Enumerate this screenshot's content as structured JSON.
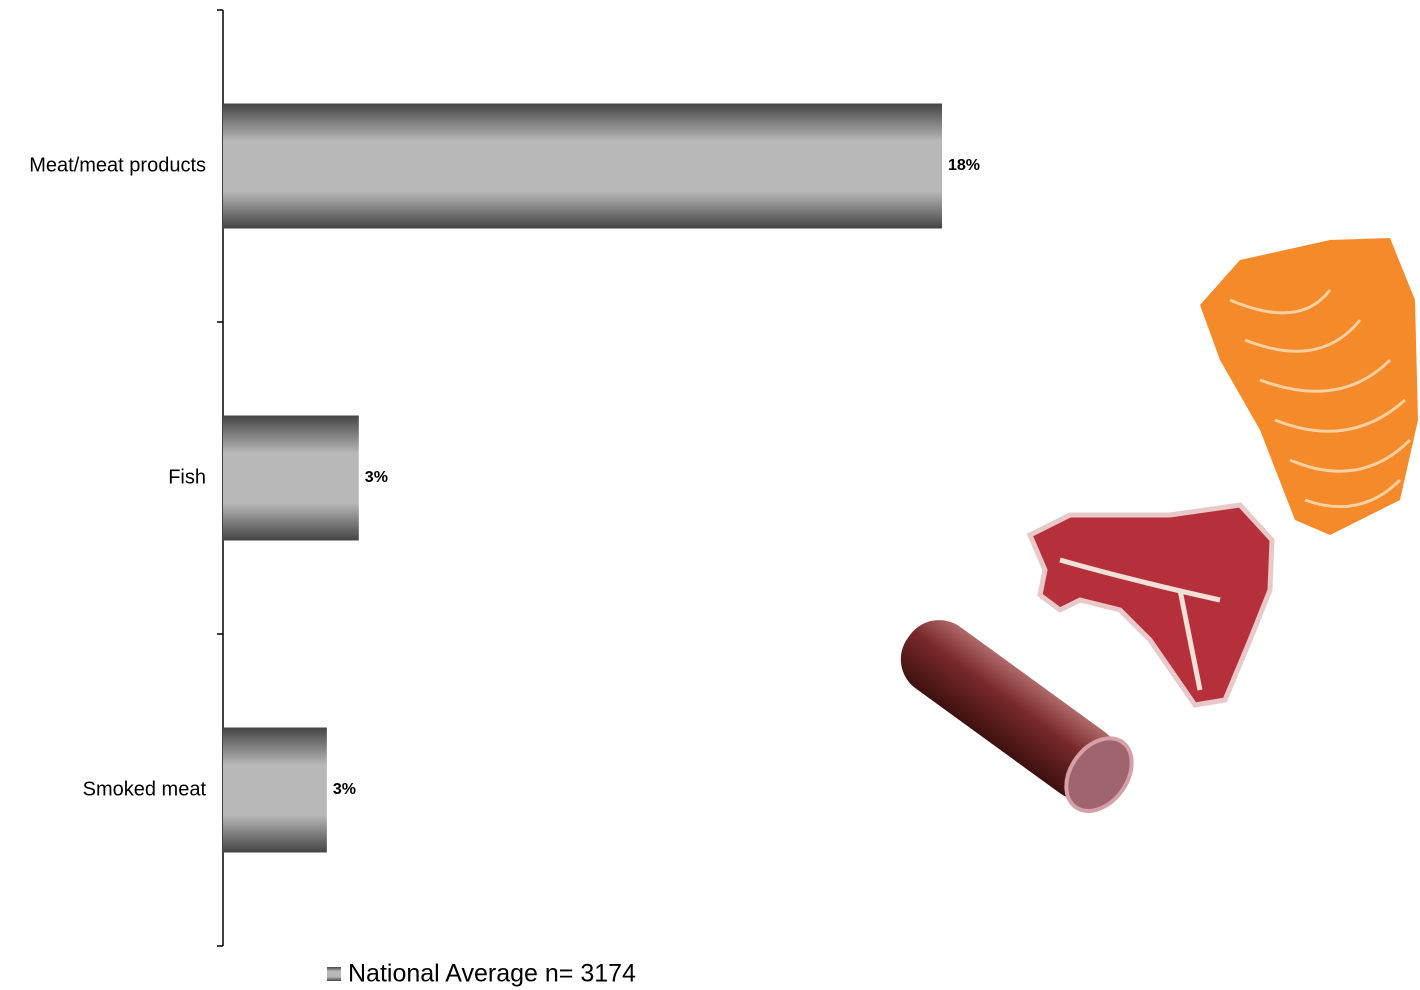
{
  "chart_data": {
    "type": "bar",
    "orientation": "horizontal",
    "categories": [
      "Meat/meat products",
      "Fish",
      "Smoked meat"
    ],
    "series": [
      {
        "name": "National Average n= 3174",
        "color": "#808080",
        "values": [
          18,
          3.4,
          2.6
        ],
        "value_labels": [
          "18%",
          "3%",
          "3%"
        ]
      }
    ],
    "xlim": [
      0,
      18
    ]
  }
}
